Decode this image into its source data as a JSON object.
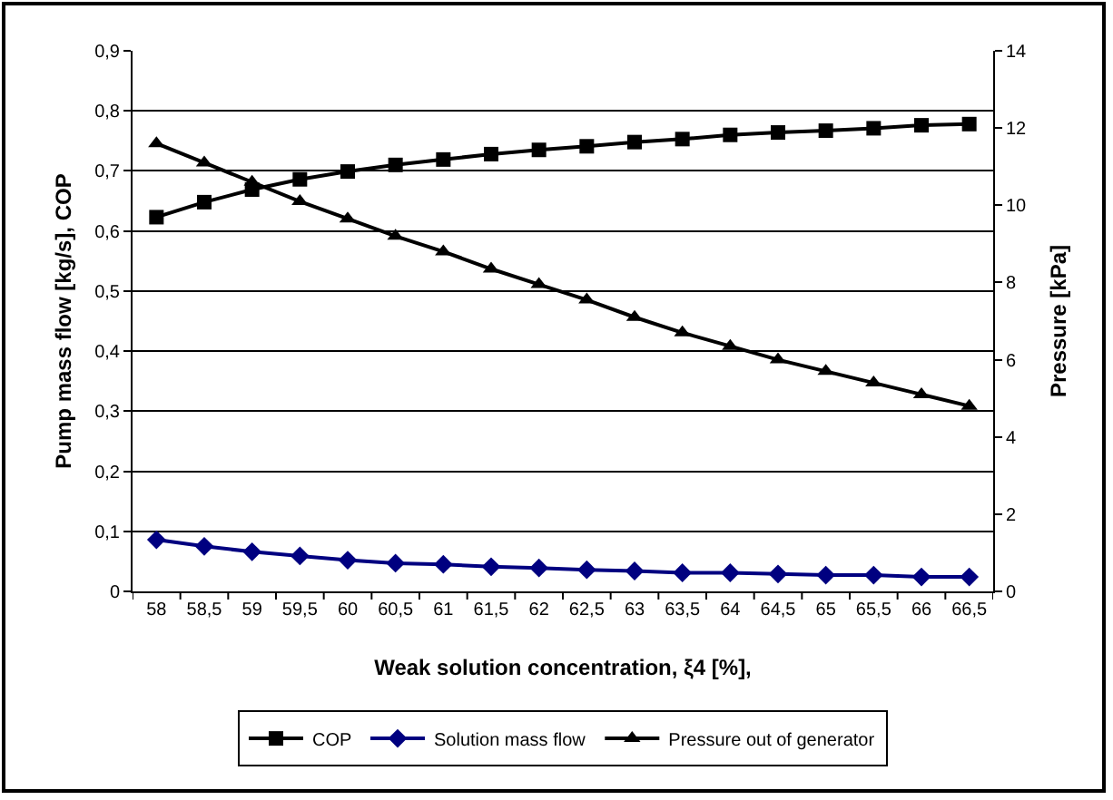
{
  "chart_data": {
    "type": "line",
    "xlabel": "Weak solution concentration, ξ4 [%],",
    "ylabel": "Pump mass flow [kg/s], COP",
    "y2label": "Pressure [kPa]",
    "categories": [
      "58",
      "58,5",
      "59",
      "59,5",
      "60",
      "60,5",
      "61",
      "61,5",
      "62",
      "62,5",
      "63",
      "63,5",
      "64",
      "64,5",
      "65",
      "65,5",
      "66",
      "66,5"
    ],
    "series": [
      {
        "name": "COP",
        "color": "#000000",
        "marker": "square",
        "values": [
          0.623,
          0.648,
          0.669,
          0.686,
          0.699,
          0.71,
          0.719,
          0.728,
          0.735,
          0.741,
          0.748,
          0.753,
          0.76,
          0.764,
          0.767,
          0.771,
          0.776,
          0.778
        ]
      },
      {
        "name": "Solution mass flow",
        "color": "#000080",
        "marker": "diamond",
        "values": [
          0.086,
          0.075,
          0.066,
          0.059,
          0.052,
          0.047,
          0.045,
          0.041,
          0.039,
          0.036,
          0.034,
          0.031,
          0.031,
          0.029,
          0.027,
          0.027,
          0.024,
          0.024
        ]
      },
      {
        "name": "Pressure out of generator",
        "color": "#000000",
        "marker": "triangle",
        "axis": "y2",
        "values": [
          11.6,
          11.1,
          10.6,
          10.1,
          9.65,
          9.2,
          8.8,
          8.35,
          7.95,
          7.55,
          7.1,
          6.7,
          6.35,
          6.0,
          5.7,
          5.4,
          5.1,
          4.8
        ]
      }
    ],
    "ylim": [
      0,
      0.9
    ],
    "yticks": [
      0,
      {
        "value": 0.1,
        "label": "0,1"
      },
      {
        "value": 0.2,
        "label": "0,2"
      },
      {
        "value": 0.3,
        "label": "0,3"
      },
      {
        "value": 0.4,
        "label": "0,4"
      },
      {
        "value": 0.5,
        "label": "0,5"
      },
      {
        "value": 0.6,
        "label": "0,6"
      },
      {
        "value": 0.7,
        "label": "0,7"
      },
      {
        "value": 0.8,
        "label": "0,8"
      },
      {
        "value": 0.9,
        "label": "0,9"
      }
    ],
    "y2lim": [
      0,
      14
    ],
    "y2ticks": [
      0,
      2,
      4,
      6,
      8,
      10,
      12,
      14
    ],
    "grid": "y",
    "legend": "bottom",
    "line_style": "solid"
  }
}
